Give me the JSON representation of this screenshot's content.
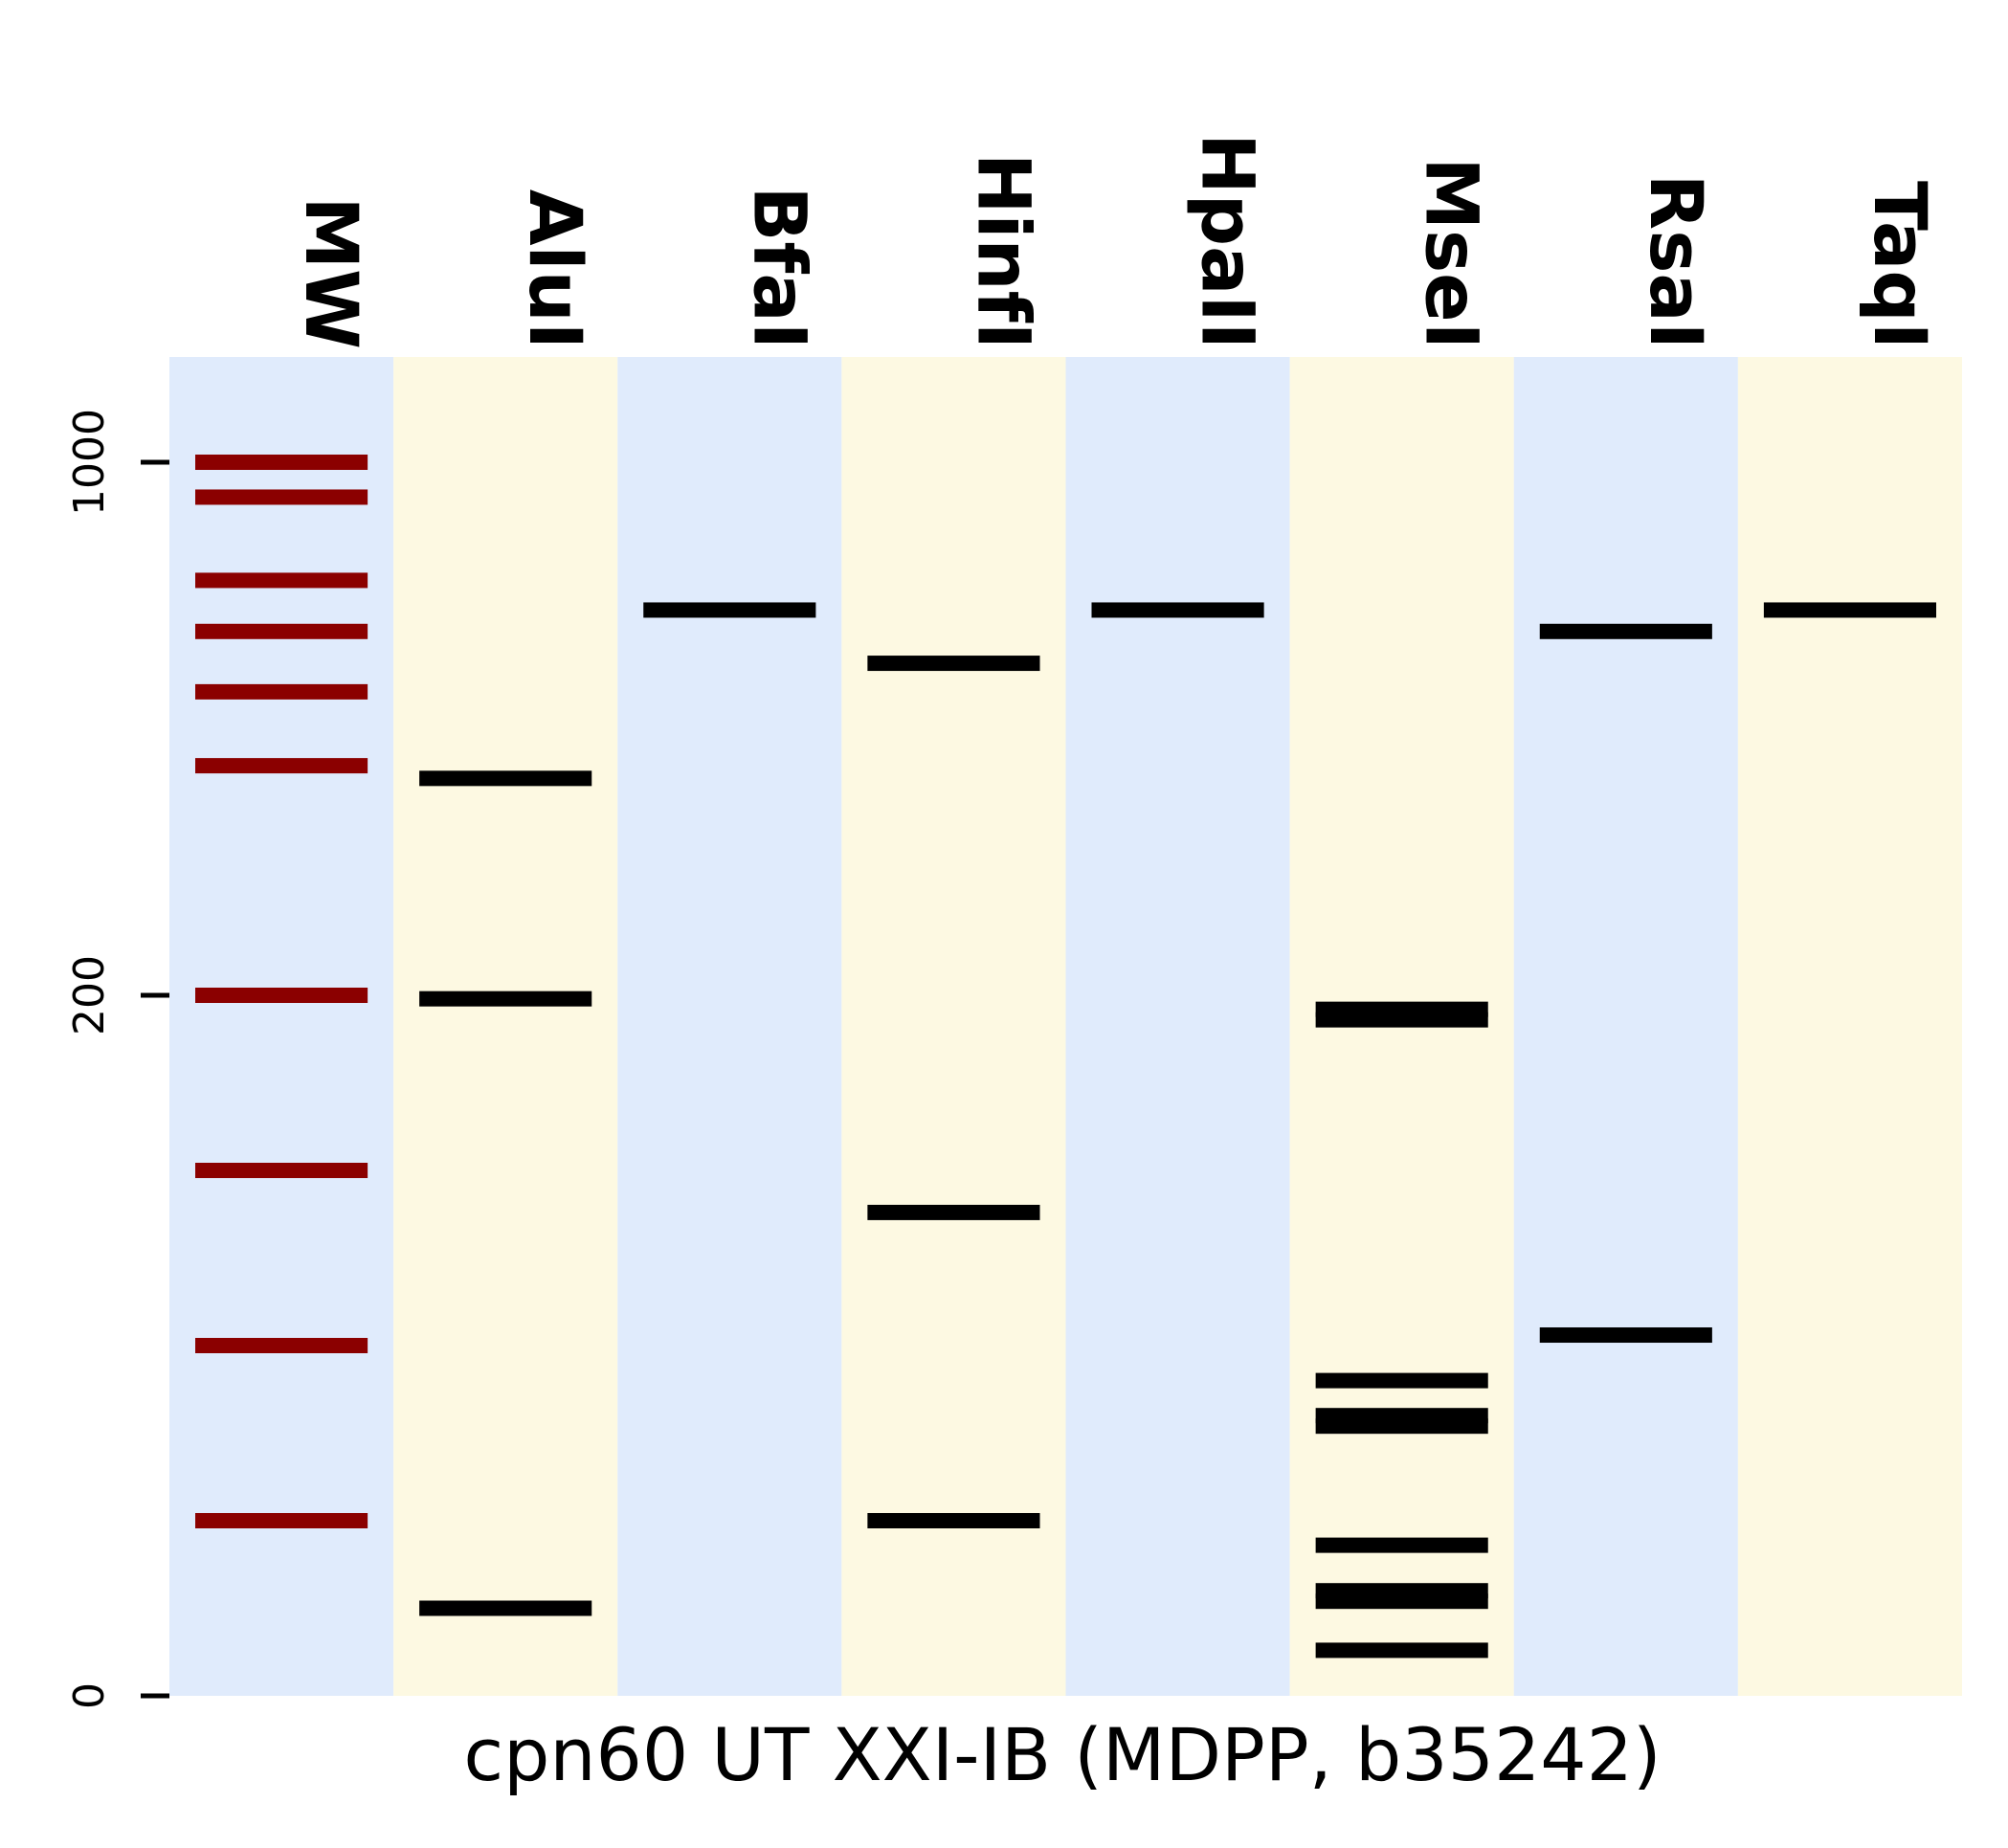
{
  "chart_data": {
    "type": "gel",
    "title": "",
    "xlabel": "cpn60 UT XXI-IB (MDPP, b35242)",
    "ylabel": "",
    "y_scale": "piecewise (0-200 linear lower region, 200-1000 log-like upper region)",
    "yticks": [
      {
        "value": 1000,
        "label": "1000"
      },
      {
        "value": 200,
        "label": "200"
      },
      {
        "value": 0,
        "label": "0"
      }
    ],
    "lanes": [
      {
        "name": "MW",
        "bands_bp": [
          1000,
          900,
          700,
          600,
          500,
          400,
          200,
          150,
          100,
          50
        ],
        "color": "#8b0000"
      },
      {
        "name": "AluI",
        "bands_bp": [
          385,
          199,
          25
        ],
        "color": "#000000"
      },
      {
        "name": "BfaI",
        "bands_bp": [
          640
        ],
        "color": "#000000"
      },
      {
        "name": "HinfI",
        "bands_bp": [
          545,
          138,
          50
        ],
        "color": "#000000"
      },
      {
        "name": "HpaII",
        "bands_bp": [
          640
        ],
        "color": "#000000"
      },
      {
        "name": "MseI",
        "bands_bp": [
          196,
          193,
          90,
          80,
          77,
          43,
          30,
          27,
          13
        ],
        "color": "#000000"
      },
      {
        "name": "RsaI",
        "bands_bp": [
          600,
          103
        ],
        "color": "#000000"
      },
      {
        "name": "TaqI",
        "bands_bp": [
          640
        ],
        "color": "#000000"
      }
    ],
    "lane_colors": [
      "#e0ebfc",
      "#fdf9e2"
    ]
  }
}
